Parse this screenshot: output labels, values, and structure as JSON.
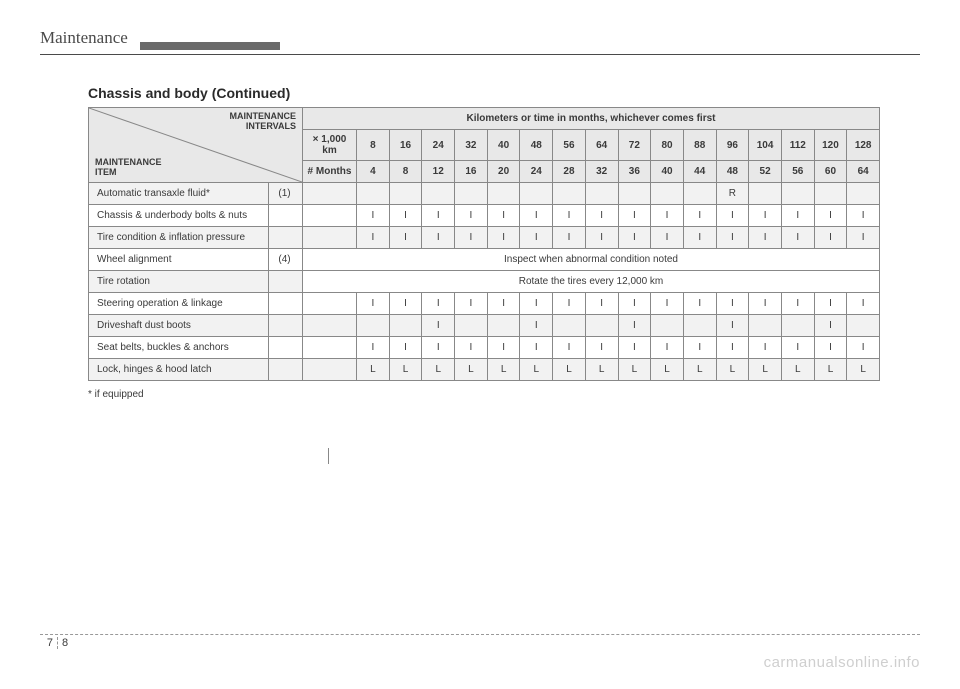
{
  "header": {
    "title": "Maintenance"
  },
  "section_title": "Chassis and body (Continued)",
  "diag": {
    "top": "MAINTENANCE\nINTERVALS",
    "bottom": "MAINTENANCE\nITEM"
  },
  "span_header": "Kilometers or time in months, whichever comes first",
  "row_labels": {
    "km": "× 1,000 km",
    "months": "# Months"
  },
  "km": [
    "8",
    "16",
    "24",
    "32",
    "40",
    "48",
    "56",
    "64",
    "72",
    "80",
    "88",
    "96",
    "104",
    "112",
    "120",
    "128"
  ],
  "months": [
    "4",
    "8",
    "12",
    "16",
    "20",
    "24",
    "28",
    "32",
    "36",
    "40",
    "44",
    "48",
    "52",
    "56",
    "60",
    "64"
  ],
  "rows": [
    {
      "item": "Automatic transaxle fluid*",
      "note": "(1)",
      "cells": [
        "",
        "",
        "",
        "",
        "",
        "",
        "",
        "",
        "",
        "",
        "",
        "R",
        "",
        "",
        "",
        ""
      ]
    },
    {
      "item": "Chassis & underbody bolts & nuts",
      "note": "",
      "cells": [
        "I",
        "I",
        "I",
        "I",
        "I",
        "I",
        "I",
        "I",
        "I",
        "I",
        "I",
        "I",
        "I",
        "I",
        "I",
        "I"
      ]
    },
    {
      "item": "Tire condition & inflation pressure",
      "note": "",
      "cells": [
        "I",
        "I",
        "I",
        "I",
        "I",
        "I",
        "I",
        "I",
        "I",
        "I",
        "I",
        "I",
        "I",
        "I",
        "I",
        "I"
      ]
    },
    {
      "item": "Wheel alignment",
      "note": "(4)",
      "span": "Inspect when abnormal condition noted"
    },
    {
      "item": "Tire rotation",
      "note": "",
      "span": "Rotate the tires every 12,000 km"
    },
    {
      "item": "Steering operation & linkage",
      "note": "",
      "cells": [
        "I",
        "I",
        "I",
        "I",
        "I",
        "I",
        "I",
        "I",
        "I",
        "I",
        "I",
        "I",
        "I",
        "I",
        "I",
        "I"
      ]
    },
    {
      "item": "Driveshaft dust boots",
      "note": "",
      "cells": [
        "",
        "",
        "I",
        "",
        "",
        "I",
        "",
        "",
        "I",
        "",
        "",
        "I",
        "",
        "",
        "I",
        ""
      ]
    },
    {
      "item": "Seat belts, buckles & anchors",
      "note": "",
      "cells": [
        "I",
        "I",
        "I",
        "I",
        "I",
        "I",
        "I",
        "I",
        "I",
        "I",
        "I",
        "I",
        "I",
        "I",
        "I",
        "I"
      ]
    },
    {
      "item": "Lock, hinges & hood latch",
      "note": "",
      "cells": [
        "L",
        "L",
        "L",
        "L",
        "L",
        "L",
        "L",
        "L",
        "L",
        "L",
        "L",
        "L",
        "L",
        "L",
        "L",
        "L"
      ]
    }
  ],
  "footnote": "* if equipped",
  "page": {
    "chapter": "7",
    "number": "8"
  },
  "watermark": "carmanualsonline.info",
  "colors": {
    "header_bg": "#e8e8e8",
    "row_alt_bg": "#f2f2f2",
    "border": "#888888",
    "text": "#3a3a3a",
    "watermark": "#cfcfcf"
  }
}
